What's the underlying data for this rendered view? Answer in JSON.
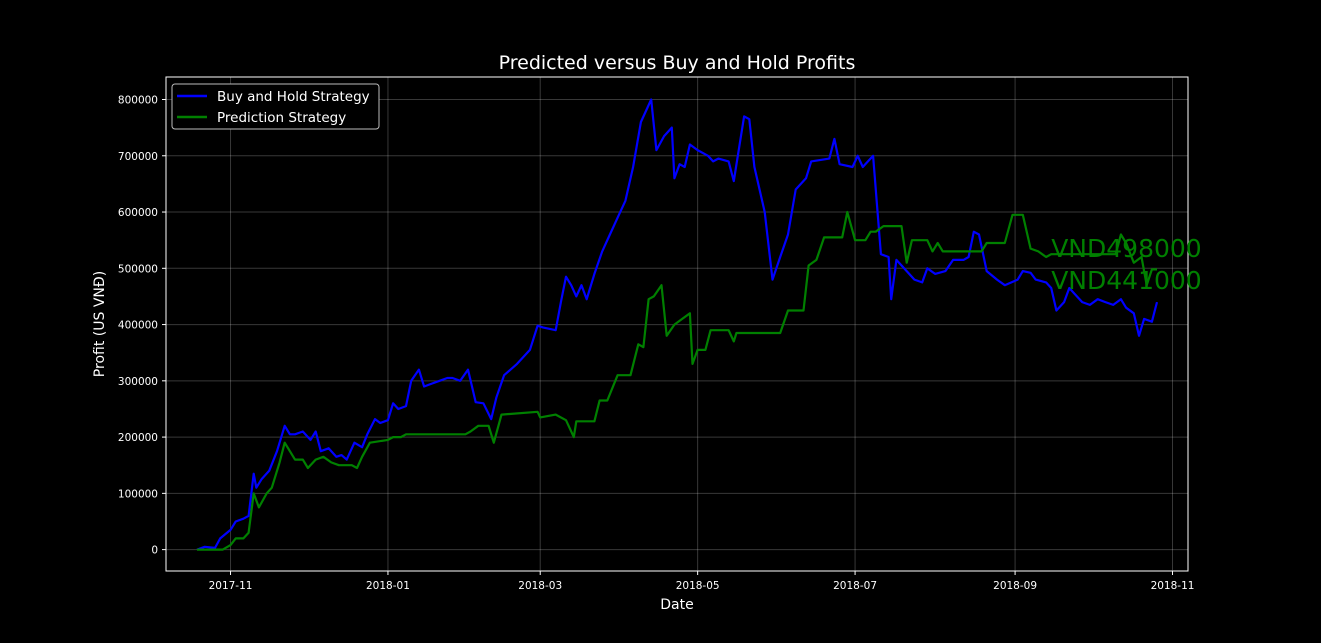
{
  "chart_data": {
    "type": "line",
    "title": "Predicted versus Buy and Hold Profits",
    "xlabel": "Date",
    "ylabel": "Profit  (US VNĐ)",
    "x_ticks": [
      "2017-11",
      "2018-01",
      "2018-03",
      "2018-05",
      "2018-07",
      "2018-09",
      "2018-11"
    ],
    "y_ticks": [
      "0",
      "100000",
      "200000",
      "300000",
      "400000",
      "500000",
      "600000",
      "700000",
      "800000"
    ],
    "xlim": [
      "2017-10-07",
      "2018-11-07"
    ],
    "ylim": [
      -38000,
      840000
    ],
    "grid": true,
    "legend_position": "top-left",
    "colors": {
      "background": "#000000",
      "buy_hold": "#0000ff",
      "prediction": "#008000",
      "text": "#ffffff"
    },
    "annotations": [
      {
        "text": "VND498000",
        "date": "2018-09-15",
        "y": 520000,
        "color": "#008000"
      },
      {
        "text": "VND441000",
        "date": "2018-09-15",
        "y": 463000,
        "color": "#008000"
      }
    ],
    "series": [
      {
        "name": "Buy and Hold Strategy",
        "color": "#0000ff",
        "points": [
          [
            "2017-10-19",
            0
          ],
          [
            "2017-10-22",
            5000
          ],
          [
            "2017-10-26",
            3000
          ],
          [
            "2017-10-28",
            20000
          ],
          [
            "2017-11-01",
            35000
          ],
          [
            "2017-11-03",
            50000
          ],
          [
            "2017-11-06",
            55000
          ],
          [
            "2017-11-08",
            60000
          ],
          [
            "2017-11-10",
            135000
          ],
          [
            "2017-11-11",
            110000
          ],
          [
            "2017-11-13",
            125000
          ],
          [
            "2017-11-16",
            140000
          ],
          [
            "2017-11-19",
            175000
          ],
          [
            "2017-11-22",
            220000
          ],
          [
            "2017-11-24",
            205000
          ],
          [
            "2017-11-26",
            205000
          ],
          [
            "2017-11-29",
            210000
          ],
          [
            "2017-12-02",
            195000
          ],
          [
            "2017-12-04",
            210000
          ],
          [
            "2017-12-06",
            175000
          ],
          [
            "2017-12-09",
            180000
          ],
          [
            "2017-12-12",
            165000
          ],
          [
            "2017-12-14",
            168000
          ],
          [
            "2017-12-16",
            160000
          ],
          [
            "2017-12-19",
            190000
          ],
          [
            "2017-12-22",
            182000
          ],
          [
            "2017-12-24",
            205000
          ],
          [
            "2017-12-27",
            232000
          ],
          [
            "2017-12-29",
            225000
          ],
          [
            "2018-01-01",
            230000
          ],
          [
            "2018-01-03",
            260000
          ],
          [
            "2018-01-05",
            250000
          ],
          [
            "2018-01-08",
            255000
          ],
          [
            "2018-01-10",
            300000
          ],
          [
            "2018-01-13",
            320000
          ],
          [
            "2018-01-15",
            290000
          ],
          [
            "2018-01-18",
            295000
          ],
          [
            "2018-01-21",
            300000
          ],
          [
            "2018-01-24",
            305000
          ],
          [
            "2018-01-26",
            305000
          ],
          [
            "2018-01-29",
            300000
          ],
          [
            "2018-02-01",
            320000
          ],
          [
            "2018-02-04",
            262000
          ],
          [
            "2018-02-07",
            260000
          ],
          [
            "2018-02-10",
            232000
          ],
          [
            "2018-02-12",
            270000
          ],
          [
            "2018-02-15",
            310000
          ],
          [
            "2018-02-20",
            330000
          ],
          [
            "2018-02-25",
            355000
          ],
          [
            "2018-02-28",
            398000
          ],
          [
            "2018-03-02",
            395000
          ],
          [
            "2018-03-07",
            390000
          ],
          [
            "2018-03-09",
            440000
          ],
          [
            "2018-03-11",
            485000
          ],
          [
            "2018-03-13",
            470000
          ],
          [
            "2018-03-15",
            450000
          ],
          [
            "2018-03-17",
            470000
          ],
          [
            "2018-03-19",
            445000
          ],
          [
            "2018-03-22",
            490000
          ],
          [
            "2018-03-25",
            530000
          ],
          [
            "2018-03-28",
            560000
          ],
          [
            "2018-03-31",
            590000
          ],
          [
            "2018-04-03",
            620000
          ],
          [
            "2018-04-06",
            680000
          ],
          [
            "2018-04-09",
            760000
          ],
          [
            "2018-04-13",
            800000
          ],
          [
            "2018-04-15",
            710000
          ],
          [
            "2018-04-18",
            735000
          ],
          [
            "2018-04-21",
            750000
          ],
          [
            "2018-04-22",
            660000
          ],
          [
            "2018-04-24",
            685000
          ],
          [
            "2018-04-26",
            680000
          ],
          [
            "2018-04-28",
            720000
          ],
          [
            "2018-05-01",
            710000
          ],
          [
            "2018-05-05",
            700000
          ],
          [
            "2018-05-07",
            690000
          ],
          [
            "2018-05-09",
            695000
          ],
          [
            "2018-05-13",
            690000
          ],
          [
            "2018-05-15",
            655000
          ],
          [
            "2018-05-19",
            770000
          ],
          [
            "2018-05-21",
            765000
          ],
          [
            "2018-05-23",
            680000
          ],
          [
            "2018-05-27",
            600000
          ],
          [
            "2018-05-30",
            480000
          ],
          [
            "2018-06-02",
            520000
          ],
          [
            "2018-06-05",
            560000
          ],
          [
            "2018-06-08",
            640000
          ],
          [
            "2018-06-12",
            660000
          ],
          [
            "2018-06-14",
            690000
          ],
          [
            "2018-06-21",
            695000
          ],
          [
            "2018-06-23",
            730000
          ],
          [
            "2018-06-25",
            685000
          ],
          [
            "2018-06-30",
            680000
          ],
          [
            "2018-07-02",
            700000
          ],
          [
            "2018-07-04",
            680000
          ],
          [
            "2018-07-08",
            700000
          ],
          [
            "2018-07-11",
            525000
          ],
          [
            "2018-07-14",
            520000
          ],
          [
            "2018-07-15",
            445000
          ],
          [
            "2018-07-17",
            515000
          ],
          [
            "2018-07-21",
            495000
          ],
          [
            "2018-07-24",
            480000
          ],
          [
            "2018-07-27",
            475000
          ],
          [
            "2018-07-29",
            500000
          ],
          [
            "2018-08-01",
            490000
          ],
          [
            "2018-08-05",
            495000
          ],
          [
            "2018-08-08",
            515000
          ],
          [
            "2018-08-12",
            515000
          ],
          [
            "2018-08-14",
            520000
          ],
          [
            "2018-08-16",
            565000
          ],
          [
            "2018-08-18",
            560000
          ],
          [
            "2018-08-21",
            495000
          ],
          [
            "2018-08-25",
            480000
          ],
          [
            "2018-08-28",
            470000
          ],
          [
            "2018-09-02",
            480000
          ],
          [
            "2018-09-04",
            495000
          ],
          [
            "2018-09-07",
            492000
          ],
          [
            "2018-09-09",
            480000
          ],
          [
            "2018-09-13",
            475000
          ],
          [
            "2018-09-15",
            465000
          ],
          [
            "2018-09-17",
            425000
          ],
          [
            "2018-09-20",
            440000
          ],
          [
            "2018-09-22",
            465000
          ],
          [
            "2018-09-24",
            455000
          ],
          [
            "2018-09-27",
            440000
          ],
          [
            "2018-09-30",
            435000
          ],
          [
            "2018-10-03",
            445000
          ],
          [
            "2018-10-06",
            440000
          ],
          [
            "2018-10-09",
            435000
          ],
          [
            "2018-10-12",
            445000
          ],
          [
            "2018-10-14",
            430000
          ],
          [
            "2018-10-17",
            420000
          ],
          [
            "2018-10-19",
            380000
          ],
          [
            "2018-10-21",
            410000
          ],
          [
            "2018-10-24",
            405000
          ],
          [
            "2018-10-26",
            440000
          ]
        ]
      },
      {
        "name": "Prediction Strategy",
        "color": "#008000",
        "points": [
          [
            "2017-10-19",
            0
          ],
          [
            "2017-10-29",
            0
          ],
          [
            "2017-11-01",
            8000
          ],
          [
            "2017-11-03",
            20000
          ],
          [
            "2017-11-06",
            20000
          ],
          [
            "2017-11-08",
            30000
          ],
          [
            "2017-11-10",
            100000
          ],
          [
            "2017-11-12",
            75000
          ],
          [
            "2017-11-15",
            100000
          ],
          [
            "2017-11-17",
            110000
          ],
          [
            "2017-11-20",
            155000
          ],
          [
            "2017-11-22",
            190000
          ],
          [
            "2017-11-24",
            175000
          ],
          [
            "2017-11-26",
            160000
          ],
          [
            "2017-11-29",
            160000
          ],
          [
            "2017-12-01",
            145000
          ],
          [
            "2017-12-04",
            160000
          ],
          [
            "2017-12-07",
            165000
          ],
          [
            "2017-12-10",
            155000
          ],
          [
            "2017-12-13",
            150000
          ],
          [
            "2017-12-18",
            150000
          ],
          [
            "2017-12-20",
            145000
          ],
          [
            "2017-12-22",
            165000
          ],
          [
            "2017-12-25",
            190000
          ],
          [
            "2018-01-01",
            195000
          ],
          [
            "2018-01-03",
            200000
          ],
          [
            "2018-01-06",
            200000
          ],
          [
            "2018-01-08",
            205000
          ],
          [
            "2018-01-31",
            205000
          ],
          [
            "2018-02-02",
            210000
          ],
          [
            "2018-02-05",
            220000
          ],
          [
            "2018-02-09",
            220000
          ],
          [
            "2018-02-11",
            190000
          ],
          [
            "2018-02-14",
            240000
          ],
          [
            "2018-02-28",
            245000
          ],
          [
            "2018-03-01",
            235000
          ],
          [
            "2018-03-07",
            240000
          ],
          [
            "2018-03-11",
            230000
          ],
          [
            "2018-03-14",
            200000
          ],
          [
            "2018-03-15",
            228000
          ],
          [
            "2018-03-22",
            228000
          ],
          [
            "2018-03-24",
            265000
          ],
          [
            "2018-03-27",
            265000
          ],
          [
            "2018-03-31",
            310000
          ],
          [
            "2018-04-05",
            310000
          ],
          [
            "2018-04-08",
            365000
          ],
          [
            "2018-04-10",
            360000
          ],
          [
            "2018-04-12",
            445000
          ],
          [
            "2018-04-14",
            450000
          ],
          [
            "2018-04-17",
            470000
          ],
          [
            "2018-04-19",
            380000
          ],
          [
            "2018-04-22",
            400000
          ],
          [
            "2018-04-25",
            410000
          ],
          [
            "2018-04-28",
            420000
          ],
          [
            "2018-04-29",
            330000
          ],
          [
            "2018-05-01",
            355000
          ],
          [
            "2018-05-04",
            355000
          ],
          [
            "2018-05-06",
            390000
          ],
          [
            "2018-05-13",
            390000
          ],
          [
            "2018-05-15",
            370000
          ],
          [
            "2018-05-16",
            385000
          ],
          [
            "2018-06-02",
            385000
          ],
          [
            "2018-06-05",
            425000
          ],
          [
            "2018-06-11",
            425000
          ],
          [
            "2018-06-13",
            505000
          ],
          [
            "2018-06-16",
            515000
          ],
          [
            "2018-06-19",
            555000
          ],
          [
            "2018-06-26",
            555000
          ],
          [
            "2018-06-28",
            600000
          ],
          [
            "2018-07-01",
            550000
          ],
          [
            "2018-07-05",
            550000
          ],
          [
            "2018-07-07",
            565000
          ],
          [
            "2018-07-09",
            565000
          ],
          [
            "2018-07-12",
            575000
          ],
          [
            "2018-07-19",
            575000
          ],
          [
            "2018-07-21",
            510000
          ],
          [
            "2018-07-23",
            550000
          ],
          [
            "2018-07-29",
            550000
          ],
          [
            "2018-07-31",
            530000
          ],
          [
            "2018-08-02",
            545000
          ],
          [
            "2018-08-04",
            530000
          ],
          [
            "2018-08-19",
            530000
          ],
          [
            "2018-08-21",
            545000
          ],
          [
            "2018-08-28",
            545000
          ],
          [
            "2018-08-31",
            595000
          ],
          [
            "2018-09-04",
            595000
          ],
          [
            "2018-09-07",
            535000
          ],
          [
            "2018-09-10",
            530000
          ],
          [
            "2018-09-13",
            520000
          ],
          [
            "2018-09-15",
            525000
          ],
          [
            "2018-10-10",
            525000
          ],
          [
            "2018-10-12",
            560000
          ],
          [
            "2018-10-14",
            545000
          ],
          [
            "2018-10-17",
            510000
          ],
          [
            "2018-10-20",
            520000
          ],
          [
            "2018-10-22",
            470000
          ],
          [
            "2018-10-24",
            498000
          ],
          [
            "2018-10-26",
            498000
          ]
        ]
      }
    ]
  }
}
